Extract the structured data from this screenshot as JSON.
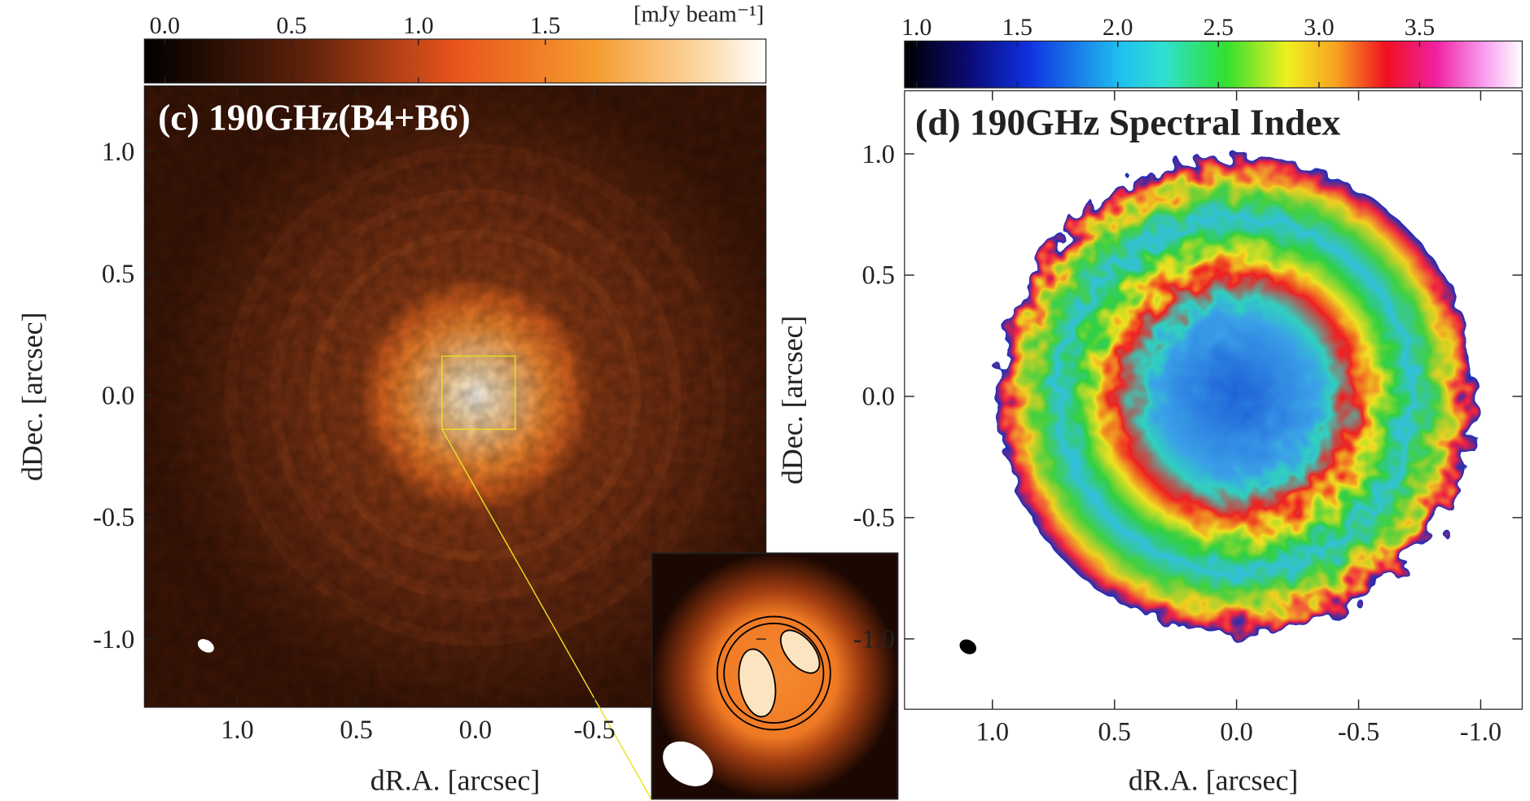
{
  "chart_data": [
    {
      "type": "image",
      "title": "(c) 190GHz(B4+B6)",
      "xlabel": "dR.A. [arcsec]",
      "ylabel": "dDec. [arcsec]",
      "xlim": [
        1.39,
        -1.22
      ],
      "ylim": [
        -1.28,
        1.27
      ],
      "xticks": [
        {
          "value": 1,
          "label": "1.0"
        },
        0.5,
        {
          "value": 0,
          "label": "0.0"
        },
        -0.5
      ],
      "yticks": [
        {
          "value": 1,
          "label": "1.0"
        },
        0.5,
        {
          "value": 0,
          "label": "0.0"
        },
        -0.5,
        {
          "value": -1,
          "label": "-1.0"
        }
      ],
      "colorbar": {
        "label": "[mJy beam⁻¹]",
        "clim": [
          -0.08,
          2.37
        ],
        "ticks": [
          {
            "value": 0,
            "label": "0.0"
          },
          0.5,
          {
            "value": 1,
            "label": "1.0"
          },
          1.5
        ]
      }
    },
    {
      "type": "image",
      "title": "(d) 190GHz Spectral Index",
      "xlabel": "dR.A. [arcsec]",
      "ylabel": "dDec. [arcsec]",
      "xlim": [
        1.36,
        -1.17
      ],
      "ylim": [
        -1.29,
        1.26
      ],
      "xticks": [
        {
          "value": 1,
          "label": "1.0"
        },
        0.5,
        {
          "value": 0,
          "label": "0.0"
        },
        -0.5,
        {
          "value": -1,
          "label": "-1.0"
        }
      ],
      "yticks": [
        {
          "value": 1,
          "label": "1.0"
        },
        0.5,
        {
          "value": 0,
          "label": "0.0"
        },
        -0.5,
        {
          "value": -1,
          "label": "-1.0"
        }
      ],
      "colorbar": {
        "clim": [
          0.94,
          4.01
        ],
        "ticks": [
          {
            "value": 1,
            "label": "1.0"
          },
          1.5,
          {
            "value": 2,
            "label": "2.0"
          },
          2.5,
          {
            "value": 3,
            "label": "3.0"
          },
          3.5
        ]
      }
    }
  ]
}
